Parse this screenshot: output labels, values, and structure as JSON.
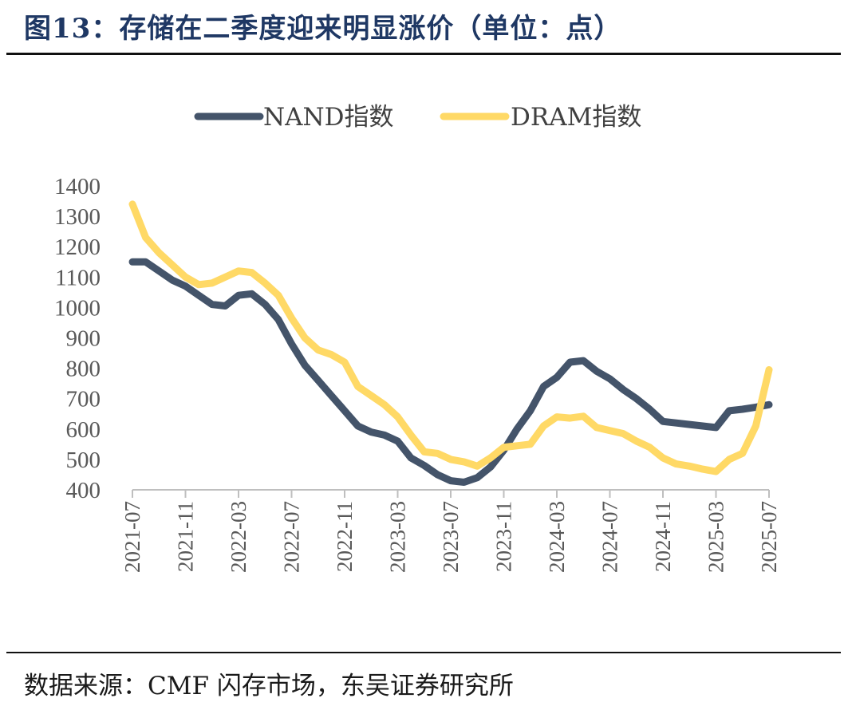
{
  "header": {
    "title": "图13：存储在二季度迎来明显涨价（单位：点）"
  },
  "footer": {
    "source": "数据来源：CMF 闪存市场，东吴证券研究所"
  },
  "colors": {
    "nand": "#44546a",
    "dram": "#ffd966",
    "axis": "#bfbfbf",
    "title": "#1f3864"
  },
  "chart_data": {
    "type": "line",
    "title": "",
    "xlabel": "",
    "ylabel": "",
    "ylim": [
      400,
      1400
    ],
    "yticks": [
      "400",
      "500",
      "600",
      "700",
      "800",
      "900",
      "1000",
      "1100",
      "1200",
      "1300",
      "1400"
    ],
    "xticks": [
      "2021-07",
      "2021-11",
      "2022-03",
      "2022-07",
      "2022-11",
      "2023-03",
      "2023-07",
      "2023-11",
      "2024-03",
      "2024-07",
      "2024-11",
      "2025-03",
      "2025-07"
    ],
    "xlim": [
      "2021-07",
      "2025-07"
    ],
    "legend_position": "top-center",
    "grid": false,
    "series": [
      {
        "name": "NAND指数",
        "color": "#44546a",
        "points": [
          [
            "2021-07",
            1150
          ],
          [
            "2021-08",
            1150
          ],
          [
            "2021-09",
            1120
          ],
          [
            "2021-10",
            1090
          ],
          [
            "2021-11",
            1070
          ],
          [
            "2021-12",
            1040
          ],
          [
            "2022-01",
            1010
          ],
          [
            "2022-02",
            1005
          ],
          [
            "2022-03",
            1040
          ],
          [
            "2022-04",
            1045
          ],
          [
            "2022-05",
            1010
          ],
          [
            "2022-06",
            960
          ],
          [
            "2022-07",
            880
          ],
          [
            "2022-08",
            810
          ],
          [
            "2022-09",
            760
          ],
          [
            "2022-10",
            710
          ],
          [
            "2022-11",
            660
          ],
          [
            "2022-12",
            610
          ],
          [
            "2023-01",
            590
          ],
          [
            "2023-02",
            580
          ],
          [
            "2023-03",
            560
          ],
          [
            "2023-04",
            505
          ],
          [
            "2023-05",
            480
          ],
          [
            "2023-06",
            450
          ],
          [
            "2023-07",
            430
          ],
          [
            "2023-08",
            425
          ],
          [
            "2023-09",
            440
          ],
          [
            "2023-10",
            475
          ],
          [
            "2023-11",
            530
          ],
          [
            "2023-12",
            600
          ],
          [
            "2024-01",
            660
          ],
          [
            "2024-02",
            740
          ],
          [
            "2024-03",
            770
          ],
          [
            "2024-04",
            820
          ],
          [
            "2024-05",
            825
          ],
          [
            "2024-06",
            790
          ],
          [
            "2024-07",
            765
          ],
          [
            "2024-08",
            730
          ],
          [
            "2024-09",
            700
          ],
          [
            "2024-10",
            665
          ],
          [
            "2024-11",
            625
          ],
          [
            "2024-12",
            620
          ],
          [
            "2025-01",
            615
          ],
          [
            "2025-02",
            610
          ],
          [
            "2025-03",
            605
          ],
          [
            "2025-04",
            660
          ],
          [
            "2025-05",
            665
          ],
          [
            "2025-06",
            672
          ],
          [
            "2025-07",
            680
          ]
        ]
      },
      {
        "name": "DRAM指数",
        "color": "#ffd966",
        "points": [
          [
            "2021-07",
            1340
          ],
          [
            "2021-08",
            1230
          ],
          [
            "2021-09",
            1180
          ],
          [
            "2021-10",
            1140
          ],
          [
            "2021-11",
            1100
          ],
          [
            "2021-12",
            1075
          ],
          [
            "2022-01",
            1080
          ],
          [
            "2022-02",
            1100
          ],
          [
            "2022-03",
            1120
          ],
          [
            "2022-04",
            1115
          ],
          [
            "2022-05",
            1080
          ],
          [
            "2022-06",
            1040
          ],
          [
            "2022-07",
            965
          ],
          [
            "2022-08",
            900
          ],
          [
            "2022-09",
            860
          ],
          [
            "2022-10",
            845
          ],
          [
            "2022-11",
            820
          ],
          [
            "2022-12",
            740
          ],
          [
            "2023-01",
            710
          ],
          [
            "2023-02",
            680
          ],
          [
            "2023-03",
            640
          ],
          [
            "2023-04",
            580
          ],
          [
            "2023-05",
            525
          ],
          [
            "2023-06",
            520
          ],
          [
            "2023-07",
            500
          ],
          [
            "2023-08",
            492
          ],
          [
            "2023-09",
            478
          ],
          [
            "2023-10",
            505
          ],
          [
            "2023-11",
            540
          ],
          [
            "2023-12",
            545
          ],
          [
            "2024-01",
            550
          ],
          [
            "2024-02",
            610
          ],
          [
            "2024-03",
            640
          ],
          [
            "2024-04",
            636
          ],
          [
            "2024-05",
            642
          ],
          [
            "2024-06",
            605
          ],
          [
            "2024-07",
            595
          ],
          [
            "2024-08",
            585
          ],
          [
            "2024-09",
            560
          ],
          [
            "2024-10",
            540
          ],
          [
            "2024-11",
            505
          ],
          [
            "2024-12",
            485
          ],
          [
            "2025-01",
            478
          ],
          [
            "2025-02",
            468
          ],
          [
            "2025-03",
            460
          ],
          [
            "2025-04",
            500
          ],
          [
            "2025-05",
            520
          ],
          [
            "2025-06",
            610
          ],
          [
            "2025-07",
            795
          ]
        ]
      }
    ]
  }
}
